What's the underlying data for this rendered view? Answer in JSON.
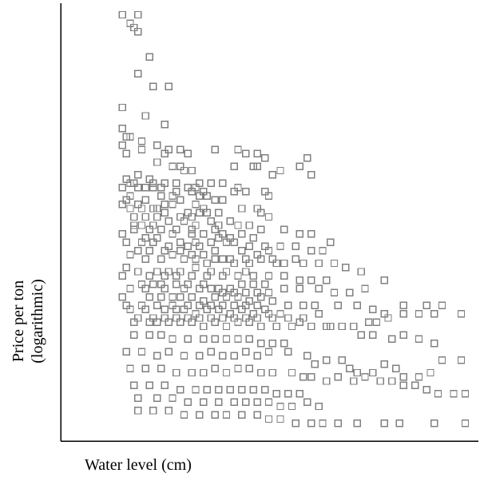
{
  "chart_data": {
    "type": "scatter",
    "title": "",
    "xlabel": "Water level (cm)",
    "ylabel_lines": [
      "Price per ton",
      "(logarithmic)"
    ],
    "ylabel_note": "logarithmic",
    "x_tick_labels_shown": false,
    "y_tick_labels_shown": false,
    "legend": "none",
    "grid": false,
    "marker": "open-square",
    "xlim": [
      0,
      100
    ],
    "ylim": [
      0,
      100
    ],
    "colors": {
      "marker": "#808080",
      "axis": "#000000",
      "text": "#000000"
    },
    "points": [
      [
        9,
        98
      ],
      [
        13,
        98
      ],
      [
        11,
        96
      ],
      [
        12,
        95
      ],
      [
        13,
        94
      ],
      [
        16,
        88
      ],
      [
        13,
        84
      ],
      [
        17,
        81
      ],
      [
        21,
        81
      ],
      [
        9,
        76
      ],
      [
        15,
        74
      ],
      [
        20,
        72
      ],
      [
        9,
        71
      ],
      [
        10,
        69
      ],
      [
        11,
        69
      ],
      [
        14,
        68
      ],
      [
        9,
        67
      ],
      [
        10,
        65
      ],
      [
        20,
        65
      ],
      [
        18,
        63
      ],
      [
        22,
        62
      ],
      [
        24,
        62
      ],
      [
        25,
        61
      ],
      [
        27,
        61
      ],
      [
        38,
        62
      ],
      [
        43,
        62
      ],
      [
        44,
        62
      ],
      [
        48,
        60
      ],
      [
        58,
        60
      ],
      [
        55,
        62
      ],
      [
        57,
        64
      ],
      [
        13,
        60
      ],
      [
        12,
        58
      ],
      [
        9,
        57
      ],
      [
        13,
        57
      ],
      [
        15,
        57
      ],
      [
        17,
        57
      ],
      [
        19,
        57
      ],
      [
        23,
        56
      ],
      [
        26,
        57
      ],
      [
        27,
        56
      ],
      [
        28,
        57
      ],
      [
        11,
        55
      ],
      [
        15,
        54
      ],
      [
        19,
        55
      ],
      [
        22,
        55
      ],
      [
        24,
        54
      ],
      [
        29,
        55
      ],
      [
        31,
        55
      ],
      [
        33,
        54
      ],
      [
        35,
        54
      ],
      [
        38,
        56
      ],
      [
        41,
        56
      ],
      [
        9,
        53
      ],
      [
        11,
        52
      ],
      [
        14,
        52
      ],
      [
        17,
        52
      ],
      [
        18,
        52
      ],
      [
        20,
        51
      ],
      [
        24,
        50
      ],
      [
        26,
        51
      ],
      [
        27,
        50
      ],
      [
        29,
        51
      ],
      [
        31,
        51
      ],
      [
        12,
        50
      ],
      [
        15,
        50
      ],
      [
        18,
        50
      ],
      [
        21,
        49
      ],
      [
        25,
        49
      ],
      [
        28,
        48
      ],
      [
        32,
        49
      ],
      [
        34,
        48
      ],
      [
        37,
        49
      ],
      [
        39,
        48
      ],
      [
        42,
        48
      ],
      [
        9,
        46
      ],
      [
        12,
        47
      ],
      [
        16,
        47
      ],
      [
        19,
        47
      ],
      [
        22,
        46
      ],
      [
        27,
        46
      ],
      [
        30,
        46
      ],
      [
        34,
        45
      ],
      [
        37,
        45
      ],
      [
        40,
        46
      ],
      [
        43,
        45
      ],
      [
        10,
        44
      ],
      [
        14,
        44
      ],
      [
        17,
        44
      ],
      [
        21,
        43
      ],
      [
        26,
        43
      ],
      [
        29,
        43
      ],
      [
        33,
        42
      ],
      [
        36,
        44
      ],
      [
        40,
        42
      ],
      [
        44,
        41
      ],
      [
        47,
        42
      ],
      [
        11,
        41
      ],
      [
        15,
        40
      ],
      [
        19,
        40
      ],
      [
        22,
        41
      ],
      [
        25,
        40
      ],
      [
        28,
        40
      ],
      [
        31,
        39
      ],
      [
        35,
        40
      ],
      [
        38,
        39
      ],
      [
        42,
        39
      ],
      [
        49,
        39
      ],
      [
        10,
        38
      ],
      [
        13,
        37
      ],
      [
        18,
        37
      ],
      [
        21,
        37
      ],
      [
        24,
        37
      ],
      [
        28,
        38
      ],
      [
        32,
        37
      ],
      [
        36,
        37
      ],
      [
        41,
        37
      ],
      [
        54,
        40
      ],
      [
        64,
        39
      ],
      [
        67,
        38
      ],
      [
        71,
        37
      ],
      [
        77,
        35
      ],
      [
        14,
        34
      ],
      [
        17,
        34
      ],
      [
        19,
        34
      ],
      [
        23,
        34
      ],
      [
        26,
        34
      ],
      [
        30,
        34
      ],
      [
        34,
        33
      ],
      [
        37,
        33
      ],
      [
        40,
        34
      ],
      [
        43,
        34
      ],
      [
        46,
        34
      ],
      [
        9,
        31
      ],
      [
        16,
        31
      ],
      [
        19,
        31
      ],
      [
        22,
        31
      ],
      [
        24,
        31
      ],
      [
        27,
        31
      ],
      [
        30,
        30
      ],
      [
        33,
        31
      ],
      [
        36,
        31
      ],
      [
        39,
        31
      ],
      [
        42,
        30
      ],
      [
        45,
        31
      ],
      [
        48,
        30
      ],
      [
        11,
        28
      ],
      [
        15,
        28
      ],
      [
        20,
        28
      ],
      [
        23,
        28
      ],
      [
        25,
        28
      ],
      [
        28,
        27
      ],
      [
        31,
        28
      ],
      [
        34,
        28
      ],
      [
        37,
        27
      ],
      [
        40,
        28
      ],
      [
        43,
        27
      ],
      [
        47,
        27
      ],
      [
        50,
        27
      ],
      [
        12,
        25
      ],
      [
        16,
        25
      ],
      [
        18,
        25
      ],
      [
        21,
        25
      ],
      [
        24,
        25
      ],
      [
        27,
        25
      ],
      [
        30,
        24
      ],
      [
        33,
        25
      ],
      [
        36,
        24
      ],
      [
        39,
        25
      ],
      [
        42,
        25
      ],
      [
        45,
        24
      ],
      [
        49,
        24
      ],
      [
        53,
        24
      ],
      [
        56,
        26
      ],
      [
        60,
        27
      ],
      [
        63,
        24
      ],
      [
        66,
        24
      ],
      [
        69,
        24
      ],
      [
        73,
        25
      ],
      [
        75,
        25
      ],
      [
        77,
        27
      ],
      [
        78,
        26
      ],
      [
        82,
        27
      ],
      [
        86,
        27
      ],
      [
        90,
        27
      ],
      [
        97,
        27
      ],
      [
        12,
        22
      ],
      [
        16,
        22
      ],
      [
        19,
        22
      ],
      [
        22,
        21
      ],
      [
        26,
        21
      ],
      [
        30,
        21
      ],
      [
        33,
        21
      ],
      [
        36,
        21
      ],
      [
        39,
        21
      ],
      [
        42,
        21
      ],
      [
        45,
        20
      ],
      [
        48,
        20
      ],
      [
        51,
        20
      ],
      [
        10,
        18
      ],
      [
        14,
        18
      ],
      [
        18,
        17
      ],
      [
        21,
        18
      ],
      [
        25,
        17
      ],
      [
        29,
        17
      ],
      [
        32,
        18
      ],
      [
        35,
        17
      ],
      [
        38,
        17
      ],
      [
        41,
        18
      ],
      [
        44,
        17
      ],
      [
        47,
        18
      ],
      [
        52,
        18
      ],
      [
        57,
        17
      ],
      [
        59,
        15
      ],
      [
        62,
        16
      ],
      [
        66,
        16
      ],
      [
        68,
        14
      ],
      [
        70,
        13
      ],
      [
        74,
        13
      ],
      [
        77,
        15
      ],
      [
        80,
        14
      ],
      [
        82,
        12
      ],
      [
        86,
        12
      ],
      [
        89,
        13
      ],
      [
        92,
        16
      ],
      [
        97,
        16
      ],
      [
        11,
        14
      ],
      [
        15,
        14
      ],
      [
        19,
        14
      ],
      [
        23,
        13
      ],
      [
        27,
        13
      ],
      [
        30,
        13
      ],
      [
        33,
        14
      ],
      [
        36,
        13
      ],
      [
        39,
        14
      ],
      [
        42,
        14
      ],
      [
        45,
        13
      ],
      [
        48,
        13
      ],
      [
        53,
        13
      ],
      [
        56,
        12
      ],
      [
        58,
        12
      ],
      [
        62,
        11
      ],
      [
        65,
        12
      ],
      [
        69,
        11
      ],
      [
        72,
        12
      ],
      [
        76,
        11
      ],
      [
        79,
        11
      ],
      [
        82,
        10
      ],
      [
        85,
        10
      ],
      [
        88,
        9
      ],
      [
        91,
        8
      ],
      [
        95,
        8
      ],
      [
        98,
        8
      ],
      [
        12,
        10
      ],
      [
        16,
        10
      ],
      [
        20,
        10
      ],
      [
        24,
        9
      ],
      [
        28,
        9
      ],
      [
        31,
        9
      ],
      [
        34,
        9
      ],
      [
        37,
        9
      ],
      [
        40,
        9
      ],
      [
        43,
        9
      ],
      [
        46,
        9
      ],
      [
        49,
        8
      ],
      [
        52,
        8
      ],
      [
        55,
        8
      ],
      [
        13,
        7
      ],
      [
        18,
        7
      ],
      [
        22,
        7
      ],
      [
        26,
        6
      ],
      [
        30,
        6
      ],
      [
        34,
        6
      ],
      [
        38,
        6
      ],
      [
        41,
        6
      ],
      [
        44,
        6
      ],
      [
        47,
        6
      ],
      [
        50,
        5
      ],
      [
        53,
        5
      ],
      [
        57,
        6
      ],
      [
        60,
        5
      ],
      [
        13,
        4
      ],
      [
        17,
        4
      ],
      [
        21,
        4
      ],
      [
        25,
        3
      ],
      [
        29,
        3
      ],
      [
        33,
        3
      ],
      [
        36,
        3
      ],
      [
        40,
        3
      ],
      [
        44,
        3
      ],
      [
        47,
        2
      ],
      [
        50,
        2
      ],
      [
        54,
        1
      ],
      [
        58,
        1
      ],
      [
        61,
        1
      ],
      [
        65,
        1
      ],
      [
        70,
        1
      ],
      [
        77,
        1
      ],
      [
        81,
        1
      ],
      [
        90,
        1
      ],
      [
        98,
        1
      ],
      [
        14,
        66
      ],
      [
        18,
        67
      ],
      [
        21,
        66
      ],
      [
        24,
        66
      ],
      [
        26,
        65
      ],
      [
        33,
        66
      ],
      [
        39,
        66
      ],
      [
        41,
        65
      ],
      [
        44,
        65
      ],
      [
        46,
        64
      ],
      [
        50,
        61
      ],
      [
        10,
        59
      ],
      [
        11,
        58
      ],
      [
        16,
        59
      ],
      [
        17,
        58
      ],
      [
        20,
        58
      ],
      [
        23,
        58
      ],
      [
        29,
        58
      ],
      [
        30,
        56
      ],
      [
        32,
        58
      ],
      [
        35,
        58
      ],
      [
        39,
        57
      ],
      [
        46,
        56
      ],
      [
        47,
        55
      ],
      [
        10,
        54
      ],
      [
        13,
        53
      ],
      [
        20,
        53
      ],
      [
        22,
        53
      ],
      [
        28,
        53
      ],
      [
        30,
        52
      ],
      [
        34,
        51
      ],
      [
        40,
        52
      ],
      [
        44,
        52
      ],
      [
        45,
        51
      ],
      [
        47,
        50
      ],
      [
        12,
        48
      ],
      [
        14,
        48
      ],
      [
        17,
        48
      ],
      [
        23,
        47
      ],
      [
        27,
        47
      ],
      [
        33,
        47
      ],
      [
        35,
        46
      ],
      [
        45,
        47
      ],
      [
        51,
        47
      ],
      [
        55,
        46
      ],
      [
        58,
        46
      ],
      [
        63,
        44
      ],
      [
        15,
        45
      ],
      [
        18,
        45
      ],
      [
        24,
        44
      ],
      [
        28,
        44
      ],
      [
        32,
        44
      ],
      [
        38,
        44
      ],
      [
        42,
        43
      ],
      [
        46,
        43
      ],
      [
        50,
        43
      ],
      [
        54,
        43
      ],
      [
        58,
        42
      ],
      [
        61,
        42
      ],
      [
        13,
        42
      ],
      [
        16,
        42
      ],
      [
        20,
        42
      ],
      [
        24,
        42
      ],
      [
        27,
        41
      ],
      [
        30,
        41
      ],
      [
        33,
        40
      ],
      [
        37,
        40
      ],
      [
        41,
        40
      ],
      [
        45,
        40
      ],
      [
        48,
        40
      ],
      [
        51,
        39
      ],
      [
        56,
        39
      ],
      [
        60,
        39
      ],
      [
        9,
        36
      ],
      [
        16,
        36
      ],
      [
        20,
        36
      ],
      [
        23,
        36
      ],
      [
        27,
        36
      ],
      [
        31,
        36
      ],
      [
        35,
        36
      ],
      [
        39,
        36
      ],
      [
        43,
        36
      ],
      [
        47,
        36
      ],
      [
        51,
        36
      ],
      [
        55,
        35
      ],
      [
        58,
        35
      ],
      [
        62,
        35
      ],
      [
        11,
        33
      ],
      [
        15,
        33
      ],
      [
        20,
        33
      ],
      [
        25,
        33
      ],
      [
        29,
        33
      ],
      [
        32,
        33
      ],
      [
        35,
        32
      ],
      [
        38,
        32
      ],
      [
        41,
        32
      ],
      [
        44,
        32
      ],
      [
        47,
        32
      ],
      [
        51,
        33
      ],
      [
        55,
        33
      ],
      [
        60,
        33
      ],
      [
        64,
        32
      ],
      [
        68,
        32
      ],
      [
        72,
        33
      ],
      [
        10,
        29
      ],
      [
        14,
        29
      ],
      [
        18,
        29
      ],
      [
        22,
        29
      ],
      [
        26,
        29
      ],
      [
        29,
        29
      ],
      [
        32,
        29
      ],
      [
        35,
        29
      ],
      [
        38,
        29
      ],
      [
        41,
        29
      ],
      [
        44,
        29
      ],
      [
        46,
        28
      ],
      [
        52,
        29
      ],
      [
        56,
        29
      ],
      [
        59,
        29
      ],
      [
        65,
        29
      ],
      [
        70,
        29
      ],
      [
        74,
        28
      ],
      [
        82,
        29
      ],
      [
        88,
        29
      ],
      [
        92,
        29
      ],
      [
        13,
        26
      ],
      [
        17,
        26
      ],
      [
        20,
        26
      ],
      [
        23,
        26
      ],
      [
        26,
        26
      ],
      [
        29,
        26
      ],
      [
        32,
        26
      ],
      [
        35,
        26
      ],
      [
        38,
        26
      ],
      [
        41,
        26
      ],
      [
        44,
        26
      ],
      [
        48,
        26
      ],
      [
        52,
        26
      ],
      [
        55,
        25
      ],
      [
        58,
        24
      ],
      [
        62,
        24
      ],
      [
        71,
        22
      ],
      [
        74,
        22
      ],
      [
        79,
        21
      ],
      [
        82,
        22
      ],
      [
        86,
        21
      ],
      [
        90,
        20
      ]
    ]
  }
}
